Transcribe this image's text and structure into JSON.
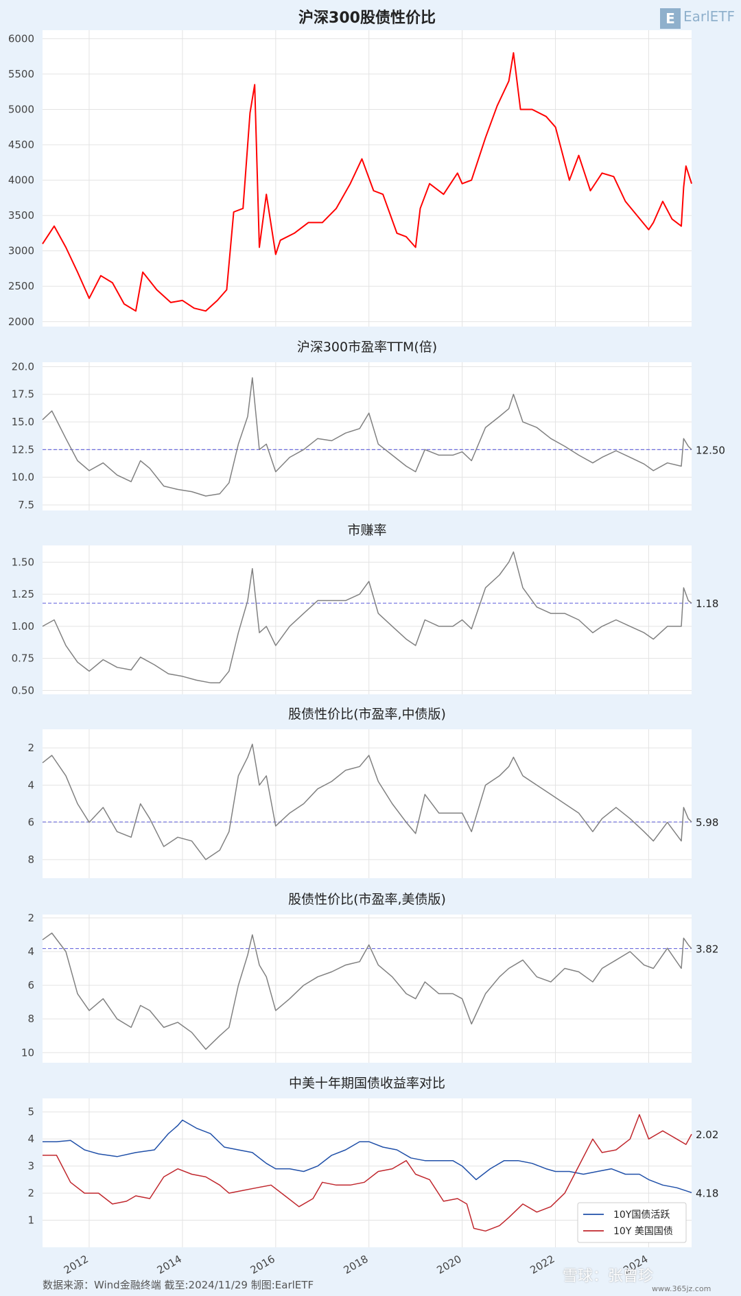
{
  "footer": "数据来源：Wind金融终端 截至:2024/11/29 制图:EarlETF",
  "logo": {
    "mark": "E",
    "text": "EarlETF"
  },
  "watermark": {
    "text": "雪球：张曾珍",
    "site": "www.365jz.com"
  },
  "x_axis": {
    "ticks": [
      "2012",
      "2014",
      "2016",
      "2018",
      "2020",
      "2022",
      "2024"
    ],
    "range": [
      2011.0,
      2024.92
    ]
  },
  "chart_data": [
    {
      "type": "line",
      "title": "沪深300股债性价比",
      "ylim": [
        1930,
        6120
      ],
      "yticks": [
        2000,
        2500,
        3000,
        3500,
        4000,
        4500,
        5000,
        5500,
        6000
      ],
      "tick_decimals": 0,
      "inverted": false,
      "grid": true,
      "series": [
        {
          "color": "#ff0000",
          "x": [
            2011.0,
            2011.25,
            2011.5,
            2011.75,
            2012.0,
            2012.25,
            2012.5,
            2012.75,
            2013.0,
            2013.15,
            2013.45,
            2013.75,
            2014.0,
            2014.25,
            2014.5,
            2014.75,
            2014.95,
            2015.1,
            2015.3,
            2015.45,
            2015.55,
            2015.65,
            2015.8,
            2016.0,
            2016.1,
            2016.4,
            2016.7,
            2017.0,
            2017.3,
            2017.6,
            2017.85,
            2018.1,
            2018.3,
            2018.6,
            2018.8,
            2019.0,
            2019.1,
            2019.3,
            2019.6,
            2019.9,
            2020.0,
            2020.2,
            2020.5,
            2020.75,
            2021.0,
            2021.1,
            2021.25,
            2021.5,
            2021.8,
            2022.0,
            2022.3,
            2022.5,
            2022.75,
            2023.0,
            2023.25,
            2023.5,
            2023.75,
            2024.0,
            2024.1,
            2024.3,
            2024.5,
            2024.7,
            2024.75,
            2024.8,
            2024.92
          ],
          "values": [
            3100,
            3350,
            3050,
            2700,
            2330,
            2650,
            2550,
            2250,
            2150,
            2700,
            2450,
            2270,
            2300,
            2190,
            2150,
            2300,
            2450,
            3550,
            3600,
            4950,
            5350,
            3050,
            3800,
            2950,
            3150,
            3250,
            3400,
            3400,
            3600,
            3950,
            4300,
            3850,
            3800,
            3250,
            3200,
            3050,
            3600,
            3950,
            3800,
            4100,
            3950,
            4000,
            4600,
            5050,
            5400,
            5800,
            5000,
            5000,
            4900,
            4750,
            4000,
            4350,
            3850,
            4100,
            4050,
            3700,
            3500,
            3300,
            3400,
            3700,
            3450,
            3350,
            3900,
            4200,
            3950
          ]
        }
      ],
      "ref": null
    },
    {
      "type": "line",
      "title": "沪深300市盈率TTM(倍)",
      "ylim": [
        7.0,
        20.4
      ],
      "yticks": [
        7.5,
        10.0,
        12.5,
        15.0,
        17.5,
        20.0
      ],
      "tick_decimals": 1,
      "inverted": false,
      "grid": true,
      "series": [
        {
          "color": "#808080",
          "x": [
            2011.0,
            2011.2,
            2011.5,
            2011.75,
            2012.0,
            2012.3,
            2012.6,
            2012.9,
            2013.1,
            2013.3,
            2013.6,
            2013.9,
            2014.2,
            2014.5,
            2014.8,
            2015.0,
            2015.2,
            2015.4,
            2015.5,
            2015.65,
            2015.8,
            2016.0,
            2016.3,
            2016.6,
            2016.9,
            2017.2,
            2017.5,
            2017.8,
            2018.0,
            2018.2,
            2018.5,
            2018.8,
            2019.0,
            2019.2,
            2019.5,
            2019.8,
            2020.0,
            2020.2,
            2020.5,
            2020.8,
            2021.0,
            2021.1,
            2021.3,
            2021.6,
            2021.9,
            2022.2,
            2022.5,
            2022.8,
            2023.0,
            2023.3,
            2023.6,
            2023.9,
            2024.1,
            2024.4,
            2024.7,
            2024.75,
            2024.85,
            2024.92
          ],
          "values": [
            15.2,
            16.0,
            13.5,
            11.5,
            10.6,
            11.3,
            10.2,
            9.6,
            11.5,
            10.8,
            9.2,
            8.9,
            8.7,
            8.3,
            8.5,
            9.5,
            13.0,
            15.5,
            19.0,
            12.5,
            13.0,
            10.5,
            11.8,
            12.5,
            13.5,
            13.3,
            14.0,
            14.4,
            15.8,
            13.0,
            12.0,
            11.0,
            10.5,
            12.5,
            12.0,
            12.0,
            12.3,
            11.5,
            14.5,
            15.5,
            16.2,
            17.5,
            15.0,
            14.5,
            13.5,
            12.8,
            12.0,
            11.3,
            11.8,
            12.4,
            11.8,
            11.2,
            10.6,
            11.3,
            11.0,
            13.5,
            12.8,
            12.5
          ]
        }
      ],
      "ref": {
        "value": 12.5,
        "label": "12.50"
      }
    },
    {
      "type": "line",
      "title": "市赚率",
      "ylim": [
        0.47,
        1.63
      ],
      "yticks": [
        0.5,
        0.75,
        1.0,
        1.25,
        1.5
      ],
      "tick_decimals": 2,
      "inverted": false,
      "grid": true,
      "series": [
        {
          "color": "#808080",
          "x": [
            2011.0,
            2011.25,
            2011.5,
            2011.75,
            2012.0,
            2012.3,
            2012.6,
            2012.9,
            2013.1,
            2013.4,
            2013.7,
            2014.0,
            2014.3,
            2014.6,
            2014.8,
            2015.0,
            2015.2,
            2015.4,
            2015.5,
            2015.65,
            2015.8,
            2016.0,
            2016.3,
            2016.6,
            2016.9,
            2017.2,
            2017.5,
            2017.8,
            2018.0,
            2018.2,
            2018.5,
            2018.8,
            2019.0,
            2019.2,
            2019.5,
            2019.8,
            2020.0,
            2020.2,
            2020.5,
            2020.8,
            2021.0,
            2021.1,
            2021.3,
            2021.6,
            2021.9,
            2022.2,
            2022.5,
            2022.8,
            2023.0,
            2023.3,
            2023.6,
            2023.9,
            2024.1,
            2024.4,
            2024.7,
            2024.75,
            2024.85,
            2024.92
          ],
          "values": [
            1.0,
            1.05,
            0.85,
            0.72,
            0.65,
            0.74,
            0.68,
            0.66,
            0.76,
            0.7,
            0.63,
            0.61,
            0.58,
            0.56,
            0.56,
            0.65,
            0.95,
            1.2,
            1.45,
            0.95,
            1.0,
            0.85,
            1.0,
            1.1,
            1.2,
            1.2,
            1.2,
            1.25,
            1.35,
            1.1,
            1.0,
            0.9,
            0.85,
            1.05,
            1.0,
            1.0,
            1.05,
            0.98,
            1.3,
            1.4,
            1.5,
            1.58,
            1.3,
            1.15,
            1.1,
            1.1,
            1.05,
            0.95,
            1.0,
            1.05,
            1.0,
            0.95,
            0.9,
            1.0,
            1.0,
            1.3,
            1.2,
            1.18
          ]
        }
      ],
      "ref": {
        "value": 1.18,
        "label": "1.18"
      }
    },
    {
      "type": "line",
      "title": "股债性价比(市盈率,中债版)",
      "ylim": [
        1.0,
        9.0
      ],
      "yticks": [
        2,
        4,
        6,
        8
      ],
      "tick_decimals": 0,
      "inverted": true,
      "grid": true,
      "series": [
        {
          "color": "#808080",
          "x": [
            2011.0,
            2011.2,
            2011.5,
            2011.75,
            2012.0,
            2012.3,
            2012.6,
            2012.9,
            2013.1,
            2013.3,
            2013.6,
            2013.9,
            2014.2,
            2014.5,
            2014.8,
            2015.0,
            2015.2,
            2015.4,
            2015.5,
            2015.65,
            2015.8,
            2016.0,
            2016.3,
            2016.6,
            2016.9,
            2017.2,
            2017.5,
            2017.8,
            2018.0,
            2018.2,
            2018.5,
            2018.8,
            2019.0,
            2019.2,
            2019.5,
            2019.8,
            2020.0,
            2020.2,
            2020.5,
            2020.8,
            2021.0,
            2021.1,
            2021.3,
            2021.6,
            2021.9,
            2022.2,
            2022.5,
            2022.8,
            2023.0,
            2023.3,
            2023.6,
            2023.9,
            2024.1,
            2024.4,
            2024.7,
            2024.75,
            2024.85,
            2024.92
          ],
          "values": [
            2.8,
            2.4,
            3.5,
            5.0,
            6.0,
            5.2,
            6.5,
            6.8,
            5.0,
            5.8,
            7.3,
            6.8,
            7.0,
            8.0,
            7.5,
            6.5,
            3.5,
            2.5,
            1.8,
            4.0,
            3.5,
            6.2,
            5.5,
            5.0,
            4.2,
            3.8,
            3.2,
            3.0,
            2.4,
            3.8,
            5.0,
            6.0,
            6.6,
            4.5,
            5.5,
            5.5,
            5.5,
            6.5,
            4.0,
            3.5,
            3.0,
            2.5,
            3.5,
            4.0,
            4.5,
            5.0,
            5.5,
            6.5,
            5.8,
            5.2,
            5.8,
            6.5,
            7.0,
            6.0,
            7.0,
            5.2,
            5.8,
            5.98
          ]
        }
      ],
      "ref": {
        "value": 5.98,
        "label": "5.98"
      }
    },
    {
      "type": "line",
      "title": "股债性价比(市盈率,美债版)",
      "ylim": [
        1.8,
        10.6
      ],
      "yticks": [
        2,
        4,
        6,
        8,
        10
      ],
      "tick_decimals": 0,
      "inverted": true,
      "grid": true,
      "series": [
        {
          "color": "#808080",
          "x": [
            2011.0,
            2011.2,
            2011.5,
            2011.75,
            2012.0,
            2012.3,
            2012.6,
            2012.9,
            2013.1,
            2013.3,
            2013.6,
            2013.9,
            2014.2,
            2014.5,
            2014.8,
            2015.0,
            2015.2,
            2015.4,
            2015.5,
            2015.65,
            2015.8,
            2016.0,
            2016.3,
            2016.6,
            2016.9,
            2017.2,
            2017.5,
            2017.8,
            2018.0,
            2018.2,
            2018.5,
            2018.8,
            2019.0,
            2019.2,
            2019.5,
            2019.8,
            2020.0,
            2020.2,
            2020.5,
            2020.8,
            2021.0,
            2021.3,
            2021.6,
            2021.9,
            2022.2,
            2022.5,
            2022.8,
            2023.0,
            2023.3,
            2023.6,
            2023.9,
            2024.1,
            2024.4,
            2024.7,
            2024.75,
            2024.85,
            2024.92
          ],
          "values": [
            3.3,
            2.9,
            4.0,
            6.5,
            7.5,
            6.8,
            8.0,
            8.5,
            7.2,
            7.5,
            8.5,
            8.2,
            8.8,
            9.8,
            9.0,
            8.5,
            6.0,
            4.2,
            3.0,
            4.8,
            5.5,
            7.5,
            6.8,
            6.0,
            5.5,
            5.2,
            4.8,
            4.6,
            3.6,
            4.8,
            5.5,
            6.5,
            6.8,
            5.8,
            6.5,
            6.5,
            6.8,
            8.3,
            6.5,
            5.5,
            5.0,
            4.5,
            5.5,
            5.8,
            5.0,
            5.2,
            5.8,
            5.0,
            4.5,
            4.0,
            4.8,
            5.0,
            3.8,
            5.0,
            3.2,
            3.6,
            3.82
          ]
        }
      ],
      "ref": {
        "value": 3.82,
        "label": "3.82"
      }
    },
    {
      "type": "line",
      "title": "中美十年期国债收益率对比",
      "ylim": [
        0.0,
        5.5
      ],
      "yticks": [
        1,
        2,
        3,
        4,
        5
      ],
      "tick_decimals": 0,
      "inverted": false,
      "grid": true,
      "series": [
        {
          "name": "10Y国债活跃",
          "color": "#1f4fa8",
          "x": [
            2011.0,
            2011.3,
            2011.6,
            2011.9,
            2012.2,
            2012.6,
            2013.0,
            2013.4,
            2013.7,
            2013.9,
            2014.0,
            2014.3,
            2014.6,
            2014.9,
            2015.2,
            2015.5,
            2015.8,
            2016.0,
            2016.3,
            2016.6,
            2016.9,
            2017.2,
            2017.5,
            2017.8,
            2018.0,
            2018.3,
            2018.6,
            2018.9,
            2019.2,
            2019.5,
            2019.8,
            2020.0,
            2020.3,
            2020.6,
            2020.9,
            2021.2,
            2021.5,
            2021.8,
            2022.0,
            2022.3,
            2022.6,
            2022.9,
            2023.2,
            2023.5,
            2023.8,
            2024.0,
            2024.3,
            2024.6,
            2024.92
          ],
          "values": [
            3.9,
            3.9,
            3.95,
            3.6,
            3.45,
            3.35,
            3.5,
            3.6,
            4.2,
            4.5,
            4.7,
            4.4,
            4.2,
            3.7,
            3.6,
            3.5,
            3.1,
            2.9,
            2.9,
            2.8,
            3.0,
            3.4,
            3.6,
            3.9,
            3.9,
            3.7,
            3.6,
            3.3,
            3.2,
            3.2,
            3.2,
            3.0,
            2.5,
            2.9,
            3.2,
            3.2,
            3.1,
            2.9,
            2.8,
            2.8,
            2.7,
            2.8,
            2.9,
            2.7,
            2.7,
            2.5,
            2.3,
            2.2,
            2.02
          ]
        },
        {
          "name": "10Y 美国国债",
          "color": "#c0262c",
          "x": [
            2011.0,
            2011.3,
            2011.6,
            2011.9,
            2012.2,
            2012.5,
            2012.8,
            2013.0,
            2013.3,
            2013.6,
            2013.9,
            2014.2,
            2014.5,
            2014.8,
            2015.0,
            2015.3,
            2015.6,
            2015.9,
            2016.2,
            2016.5,
            2016.8,
            2017.0,
            2017.3,
            2017.6,
            2017.9,
            2018.2,
            2018.5,
            2018.8,
            2019.0,
            2019.3,
            2019.6,
            2019.9,
            2020.1,
            2020.25,
            2020.5,
            2020.8,
            2021.0,
            2021.3,
            2021.6,
            2021.9,
            2022.2,
            2022.5,
            2022.8,
            2023.0,
            2023.3,
            2023.6,
            2023.8,
            2024.0,
            2024.3,
            2024.6,
            2024.8,
            2024.92
          ],
          "values": [
            3.4,
            3.4,
            2.4,
            2.0,
            2.0,
            1.6,
            1.7,
            1.9,
            1.8,
            2.6,
            2.9,
            2.7,
            2.6,
            2.3,
            2.0,
            2.1,
            2.2,
            2.3,
            1.9,
            1.5,
            1.8,
            2.4,
            2.3,
            2.3,
            2.4,
            2.8,
            2.9,
            3.2,
            2.7,
            2.5,
            1.7,
            1.8,
            1.6,
            0.7,
            0.6,
            0.8,
            1.1,
            1.6,
            1.3,
            1.5,
            2.0,
            3.0,
            4.0,
            3.5,
            3.6,
            4.0,
            4.9,
            4.0,
            4.3,
            4.0,
            3.8,
            4.18
          ]
        }
      ],
      "legend": {
        "position": "lower-right"
      },
      "end_labels": [
        "4.18",
        "2.02"
      ]
    }
  ]
}
